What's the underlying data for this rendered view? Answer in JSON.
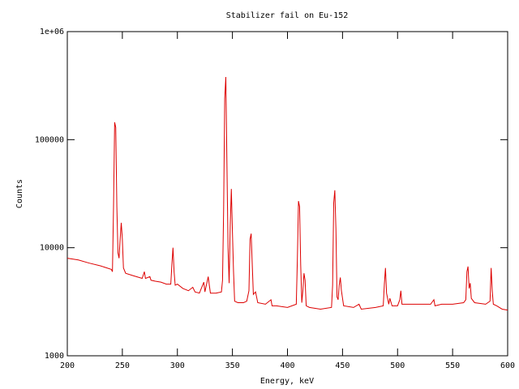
{
  "chart_data": {
    "type": "line",
    "title": "Stabilizer fail on Eu-152",
    "xlabel": "Energy, keV",
    "ylabel": "Counts",
    "log_y": true,
    "color": "#dd0000",
    "xlim": [
      200,
      600
    ],
    "xticks": [
      200,
      250,
      300,
      350,
      400,
      450,
      500,
      550,
      600
    ],
    "ylim": [
      1000,
      1000000
    ],
    "yticks": [
      1000,
      10000,
      100000,
      {
        "value": 1000000,
        "label": "1e+06"
      }
    ],
    "x": [
      200,
      210,
      220,
      230,
      240,
      241,
      242,
      243,
      244,
      245,
      246,
      247,
      248,
      249,
      250,
      251,
      253,
      260,
      268,
      270,
      271,
      275,
      276,
      280,
      285,
      290,
      294,
      295,
      296,
      297,
      298,
      300,
      305,
      310,
      314,
      316,
      320,
      324,
      325,
      328,
      329,
      330,
      335,
      340,
      341,
      342,
      343,
      344,
      345,
      346,
      347,
      348,
      349,
      350,
      351,
      352,
      355,
      360,
      363,
      365,
      366,
      367,
      368,
      369,
      371,
      373,
      380,
      385,
      386,
      390,
      400,
      408,
      409,
      410,
      411,
      412,
      413,
      414,
      415,
      416,
      417,
      420,
      430,
      440,
      441,
      442,
      443,
      444,
      445,
      446,
      447,
      448,
      449,
      451,
      460,
      465,
      467,
      480,
      487,
      488,
      489,
      490,
      492,
      493,
      495,
      500,
      502,
      503,
      504,
      510,
      520,
      530,
      533,
      534,
      540,
      550,
      560,
      562,
      563,
      564,
      565,
      566,
      567,
      570,
      580,
      584,
      585,
      586,
      587,
      590,
      595,
      600
    ],
    "values": [
      8000,
      7700,
      7200,
      6800,
      6300,
      6000,
      24000,
      145000,
      130000,
      24000,
      9000,
      8000,
      12000,
      17000,
      12000,
      6500,
      5800,
      5500,
      5200,
      6000,
      5200,
      5400,
      5000,
      4900,
      4800,
      4600,
      4600,
      7000,
      10000,
      6000,
      4500,
      4600,
      4200,
      4000,
      4300,
      3900,
      3800,
      4800,
      3900,
      5400,
      4500,
      3800,
      3800,
      3900,
      5000,
      22000,
      240000,
      380000,
      60000,
      10000,
      4700,
      16000,
      35000,
      14000,
      6000,
      3200,
      3100,
      3100,
      3200,
      4000,
      12000,
      13500,
      7000,
      3700,
      3900,
      3100,
      3000,
      3300,
      2900,
      2900,
      2800,
      3000,
      8000,
      27000,
      24000,
      7000,
      3100,
      4000,
      5800,
      5000,
      2900,
      2800,
      2700,
      2800,
      4500,
      26000,
      34000,
      15000,
      3500,
      3300,
      4500,
      5300,
      4000,
      2900,
      2800,
      3000,
      2700,
      2800,
      2900,
      4600,
      6500,
      3800,
      3000,
      3400,
      2900,
      2900,
      3300,
      4000,
      3000,
      3000,
      3000,
      3000,
      3300,
      2900,
      3000,
      3000,
      3100,
      3300,
      6000,
      6700,
      4200,
      4700,
      3400,
      3100,
      3000,
      3200,
      6500,
      4000,
      3000,
      2900,
      2700,
      2650
    ]
  }
}
